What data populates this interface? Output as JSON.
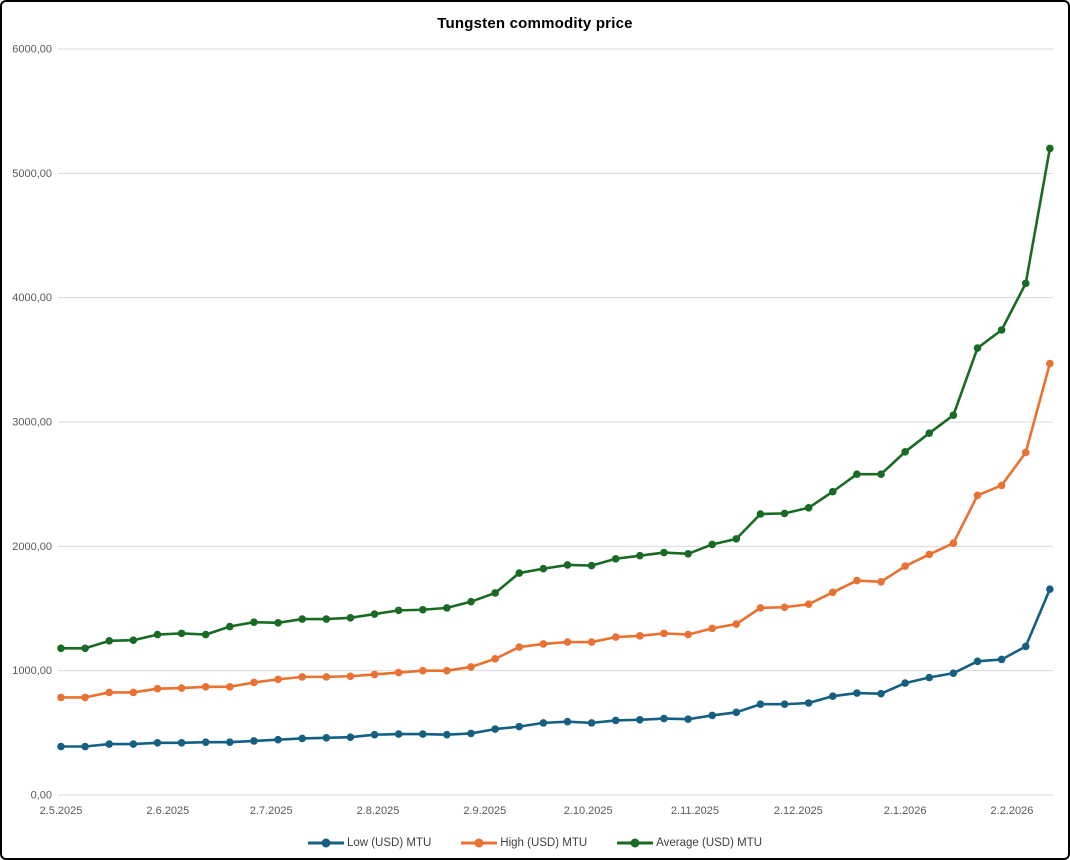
{
  "chart_data": {
    "type": "line",
    "title": "Tungsten commodity price",
    "x_dates": [
      "2.5.2025",
      "9.5.2025",
      "16.5.2025",
      "23.5.2025",
      "30.5.2025",
      "6.6.2025",
      "13.6.2025",
      "20.6.2025",
      "27.6.2025",
      "4.7.2025",
      "11.7.2025",
      "18.7.2025",
      "25.7.2025",
      "1.8.2025",
      "8.8.2025",
      "15.8.2025",
      "22.8.2025",
      "29.8.2025",
      "5.9.2025",
      "12.9.2025",
      "19.9.2025",
      "26.9.2025",
      "3.10.2025",
      "10.10.2025",
      "17.10.2025",
      "24.10.2025",
      "31.10.2025",
      "7.11.2025",
      "14.11.2025",
      "21.11.2025",
      "28.11.2025",
      "5.12.2025",
      "12.12.2025",
      "19.12.2025",
      "26.12.2025",
      "2.1.2026",
      "9.1.2026",
      "16.1.2026",
      "23.1.2026",
      "30.1.2026",
      "6.2.2026",
      "13.2.2026"
    ],
    "x_day_offsets": [
      0,
      7,
      14,
      21,
      28,
      35,
      42,
      49,
      56,
      63,
      70,
      77,
      84,
      91,
      98,
      105,
      112,
      119,
      126,
      133,
      140,
      147,
      154,
      161,
      168,
      175,
      182,
      189,
      196,
      203,
      210,
      217,
      224,
      231,
      238,
      245,
      252,
      259,
      266,
      273,
      280,
      287
    ],
    "series": [
      {
        "id": "low",
        "name": "Low (USD) MTU",
        "color": "#156082",
        "values": [
          390,
          390,
          410,
          410,
          420,
          420,
          425,
          425,
          435,
          445,
          455,
          460,
          465,
          485,
          490,
          490,
          485,
          495,
          530,
          550,
          580,
          590,
          580,
          600,
          605,
          615,
          610,
          640,
          665,
          730,
          730,
          740,
          795,
          820,
          815,
          900,
          945,
          980,
          1075,
          1090,
          1195,
          1655
        ]
      },
      {
        "id": "high",
        "name": "High (USD) MTU",
        "color": "#E97132",
        "values": [
          785,
          785,
          825,
          825,
          855,
          860,
          870,
          870,
          905,
          930,
          950,
          950,
          955,
          970,
          985,
          1000,
          1000,
          1030,
          1095,
          1190,
          1215,
          1230,
          1230,
          1270,
          1280,
          1300,
          1290,
          1340,
          1375,
          1505,
          1510,
          1535,
          1630,
          1725,
          1715,
          1840,
          1935,
          2025,
          2410,
          2490,
          2755,
          3470
        ]
      },
      {
        "id": "average",
        "name": "Average (USD) MTU",
        "color": "#196B24",
        "values": [
          1180,
          1180,
          1240,
          1245,
          1290,
          1300,
          1290,
          1355,
          1390,
          1385,
          1415,
          1415,
          1425,
          1455,
          1485,
          1490,
          1505,
          1555,
          1625,
          1785,
          1820,
          1850,
          1845,
          1900,
          1925,
          1950,
          1940,
          2015,
          2060,
          2260,
          2265,
          2310,
          2440,
          2580,
          2580,
          2760,
          2910,
          3055,
          3595,
          3740,
          4115,
          5200
        ]
      }
    ],
    "x_axis_ticks": [
      {
        "label": "2.5.2025",
        "day": 0
      },
      {
        "label": "2.6.2025",
        "day": 31
      },
      {
        "label": "2.7.2025",
        "day": 61
      },
      {
        "label": "2.8.2025",
        "day": 92
      },
      {
        "label": "2.9.2025",
        "day": 123
      },
      {
        "label": "2.10.2025",
        "day": 153
      },
      {
        "label": "2.11.2025",
        "day": 184
      },
      {
        "label": "2.12.2025",
        "day": 214
      },
      {
        "label": "2.1.2026",
        "day": 245
      },
      {
        "label": "2.2.2026",
        "day": 276
      }
    ],
    "y_axis": {
      "min": 0,
      "max": 6000,
      "tick_step": 1000,
      "tick_labels": [
        "0,00",
        "1000,00",
        "2000,00",
        "3000,00",
        "4000,00",
        "5000,00",
        "6000,00"
      ]
    },
    "legend_position": "bottom",
    "grid": true,
    "colors": {
      "grid": "#D9D9D9",
      "axis_labels": "#595959",
      "legend_text": "#404040",
      "title": "#000000",
      "background": "#FFFFFF",
      "frame_border": "#000000"
    }
  }
}
